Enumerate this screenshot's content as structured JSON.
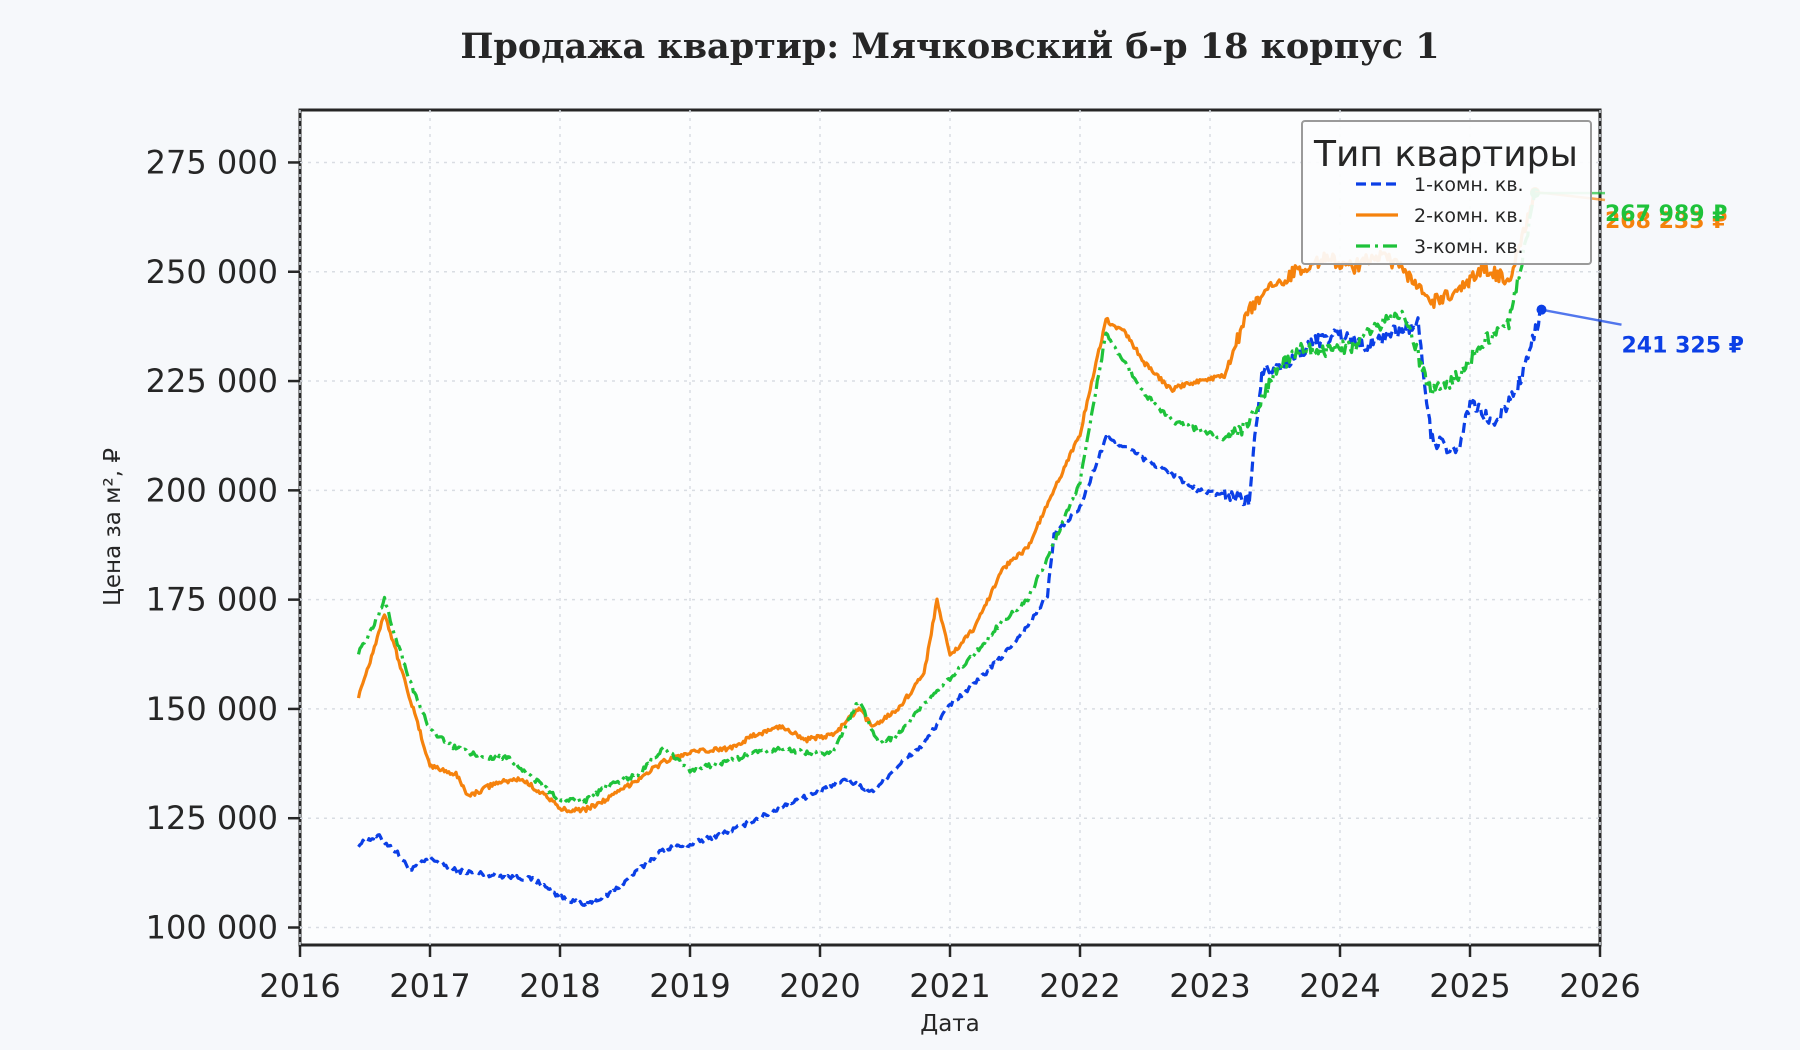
{
  "chart_data": {
    "type": "line",
    "title": "Продажа квартир: Мячковский б-р 18 корпус 1",
    "xlabel": "Дата",
    "ylabel": "Цена за м², ₽",
    "xlim": [
      2016,
      2026
    ],
    "ylim": [
      96000,
      287000
    ],
    "x_ticks": [
      "2016",
      "2017",
      "2018",
      "2019",
      "2020",
      "2021",
      "2022",
      "2023",
      "2024",
      "2025",
      "2026"
    ],
    "y_ticks": [
      "100 000",
      "125 000",
      "150 000",
      "175 000",
      "200 000",
      "225 000",
      "250 000",
      "275 000"
    ],
    "grid": true,
    "legend": {
      "title": "Тип квартиры",
      "placement": "top-right"
    },
    "series": [
      {
        "name": "1-комн. кв.",
        "color": "#0b3fe6",
        "style": "dashed",
        "end_label": "241 325 ₽",
        "points": [
          [
            2016.45,
            119000
          ],
          [
            2016.6,
            121000
          ],
          [
            2016.75,
            117000
          ],
          [
            2016.85,
            113000
          ],
          [
            2017.0,
            116000
          ],
          [
            2017.2,
            113000
          ],
          [
            2017.5,
            112000
          ],
          [
            2017.8,
            111000
          ],
          [
            2018.0,
            107000
          ],
          [
            2018.2,
            105000
          ],
          [
            2018.4,
            108000
          ],
          [
            2018.6,
            113000
          ],
          [
            2018.8,
            118000
          ],
          [
            2019.0,
            119000
          ],
          [
            2019.3,
            122000
          ],
          [
            2019.6,
            126000
          ],
          [
            2019.8,
            129000
          ],
          [
            2020.0,
            131000
          ],
          [
            2020.2,
            134000
          ],
          [
            2020.4,
            131000
          ],
          [
            2020.6,
            137000
          ],
          [
            2020.8,
            142000
          ],
          [
            2021.0,
            151000
          ],
          [
            2021.2,
            156000
          ],
          [
            2021.4,
            162000
          ],
          [
            2021.6,
            169000
          ],
          [
            2021.75,
            176000
          ],
          [
            2021.8,
            190000
          ],
          [
            2022.0,
            196000
          ],
          [
            2022.2,
            212000
          ],
          [
            2022.35,
            210000
          ],
          [
            2022.5,
            207000
          ],
          [
            2022.7,
            204000
          ],
          [
            2022.9,
            200000
          ],
          [
            2023.1,
            199000
          ],
          [
            2023.3,
            198000
          ],
          [
            2023.4,
            228000
          ],
          [
            2023.6,
            229000
          ],
          [
            2023.8,
            234000
          ],
          [
            2024.0,
            236000
          ],
          [
            2024.2,
            233000
          ],
          [
            2024.4,
            236000
          ],
          [
            2024.6,
            238000
          ],
          [
            2024.7,
            212000
          ],
          [
            2024.9,
            208000
          ],
          [
            2025.0,
            220000
          ],
          [
            2025.2,
            215000
          ],
          [
            2025.4,
            226000
          ],
          [
            2025.55,
            241325
          ]
        ]
      },
      {
        "name": "2-комн. кв.",
        "color": "#f5820d",
        "style": "solid",
        "end_label": "268 233 ₽",
        "points": [
          [
            2016.45,
            153000
          ],
          [
            2016.55,
            162000
          ],
          [
            2016.65,
            172000
          ],
          [
            2016.75,
            162000
          ],
          [
            2016.85,
            152000
          ],
          [
            2017.0,
            137000
          ],
          [
            2017.2,
            135000
          ],
          [
            2017.3,
            130000
          ],
          [
            2017.5,
            133000
          ],
          [
            2017.7,
            134000
          ],
          [
            2017.9,
            130000
          ],
          [
            2018.0,
            127000
          ],
          [
            2018.2,
            127000
          ],
          [
            2018.4,
            130000
          ],
          [
            2018.6,
            134000
          ],
          [
            2018.8,
            138000
          ],
          [
            2019.0,
            140000
          ],
          [
            2019.3,
            141000
          ],
          [
            2019.5,
            144000
          ],
          [
            2019.7,
            146000
          ],
          [
            2019.9,
            143000
          ],
          [
            2020.1,
            144000
          ],
          [
            2020.3,
            150000
          ],
          [
            2020.4,
            146000
          ],
          [
            2020.6,
            150000
          ],
          [
            2020.8,
            158000
          ],
          [
            2020.9,
            175000
          ],
          [
            2021.0,
            162000
          ],
          [
            2021.2,
            169000
          ],
          [
            2021.4,
            182000
          ],
          [
            2021.6,
            187000
          ],
          [
            2021.8,
            200000
          ],
          [
            2022.0,
            213000
          ],
          [
            2022.2,
            239000
          ],
          [
            2022.35,
            236000
          ],
          [
            2022.5,
            229000
          ],
          [
            2022.7,
            223000
          ],
          [
            2022.9,
            225000
          ],
          [
            2023.1,
            226000
          ],
          [
            2023.3,
            241000
          ],
          [
            2023.5,
            247000
          ],
          [
            2023.7,
            251000
          ],
          [
            2023.9,
            253000
          ],
          [
            2024.1,
            251000
          ],
          [
            2024.3,
            254000
          ],
          [
            2024.5,
            250000
          ],
          [
            2024.7,
            243000
          ],
          [
            2024.9,
            245000
          ],
          [
            2025.1,
            251000
          ],
          [
            2025.3,
            248000
          ],
          [
            2025.5,
            268233
          ]
        ]
      },
      {
        "name": "3-комн. кв.",
        "color": "#1ec23a",
        "style": "dashdot",
        "end_label": "267 989 ₽",
        "points": [
          [
            2016.45,
            163000
          ],
          [
            2016.55,
            168000
          ],
          [
            2016.65,
            175000
          ],
          [
            2016.75,
            165000
          ],
          [
            2016.85,
            156000
          ],
          [
            2017.0,
            145000
          ],
          [
            2017.2,
            141000
          ],
          [
            2017.4,
            139000
          ],
          [
            2017.6,
            139000
          ],
          [
            2017.8,
            134000
          ],
          [
            2018.0,
            129000
          ],
          [
            2018.2,
            129000
          ],
          [
            2018.4,
            133000
          ],
          [
            2018.6,
            135000
          ],
          [
            2018.8,
            141000
          ],
          [
            2019.0,
            136000
          ],
          [
            2019.3,
            138000
          ],
          [
            2019.5,
            140000
          ],
          [
            2019.7,
            141000
          ],
          [
            2019.9,
            140000
          ],
          [
            2020.1,
            140000
          ],
          [
            2020.3,
            152000
          ],
          [
            2020.45,
            142000
          ],
          [
            2020.6,
            144000
          ],
          [
            2020.8,
            151000
          ],
          [
            2021.0,
            157000
          ],
          [
            2021.2,
            163000
          ],
          [
            2021.4,
            170000
          ],
          [
            2021.6,
            175000
          ],
          [
            2021.8,
            188000
          ],
          [
            2022.0,
            202000
          ],
          [
            2022.2,
            236000
          ],
          [
            2022.35,
            229000
          ],
          [
            2022.5,
            222000
          ],
          [
            2022.7,
            216000
          ],
          [
            2022.9,
            214000
          ],
          [
            2023.1,
            212000
          ],
          [
            2023.3,
            215000
          ],
          [
            2023.5,
            227000
          ],
          [
            2023.7,
            232000
          ],
          [
            2023.9,
            232000
          ],
          [
            2024.1,
            233000
          ],
          [
            2024.3,
            238000
          ],
          [
            2024.5,
            240000
          ],
          [
            2024.7,
            222000
          ],
          [
            2024.9,
            226000
          ],
          [
            2025.1,
            234000
          ],
          [
            2025.3,
            238000
          ],
          [
            2025.5,
            267989
          ]
        ]
      }
    ]
  }
}
